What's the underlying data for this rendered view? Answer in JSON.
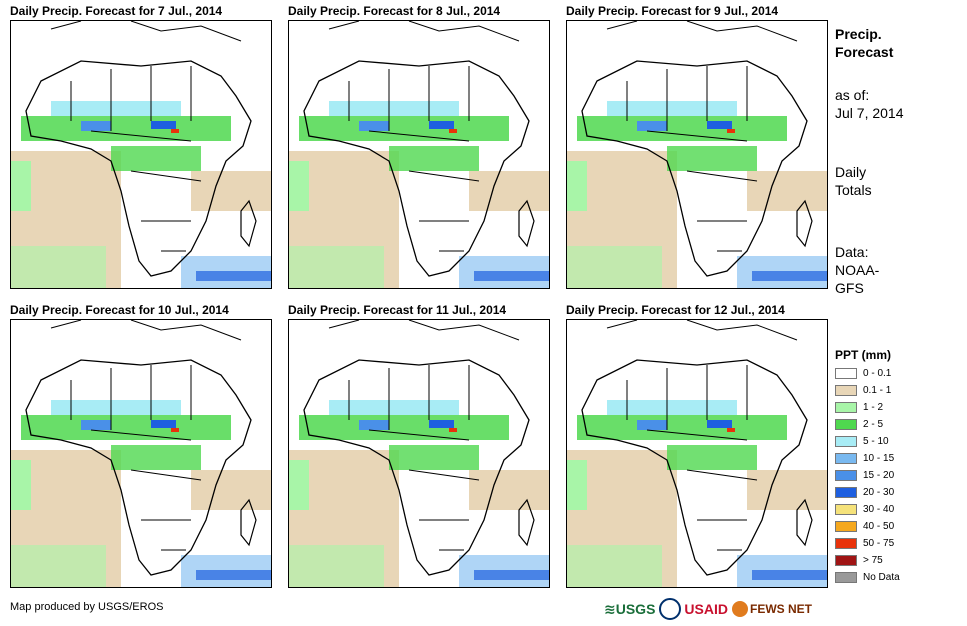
{
  "panels": [
    {
      "title": "Daily Precip. Forecast for 7 Jul., 2014"
    },
    {
      "title": "Daily Precip. Forecast for 8 Jul., 2014"
    },
    {
      "title": "Daily Precip. Forecast for 9 Jul., 2014"
    },
    {
      "title": "Daily Precip. Forecast for 10 Jul., 2014"
    },
    {
      "title": "Daily Precip. Forecast for 11 Jul., 2014"
    },
    {
      "title": "Daily Precip. Forecast for 12 Jul., 2014"
    }
  ],
  "side": {
    "title_line1": "Precip.",
    "title_line2": "Forecast",
    "asof_line1": "as of:",
    "asof_line2": "Jul 7, 2014",
    "daily_line1": "Daily",
    "daily_line2": "Totals",
    "data_line1": "Data:",
    "data_line2": "NOAA-",
    "data_line3": "GFS"
  },
  "legend": {
    "title": "PPT (mm)",
    "items": [
      {
        "label": "0 - 0.1",
        "color": "#ffffff"
      },
      {
        "label": "0.1 - 1",
        "color": "#e8d6b7"
      },
      {
        "label": "1 - 2",
        "color": "#a8f5a8"
      },
      {
        "label": "2 - 5",
        "color": "#4fd84f"
      },
      {
        "label": "5 - 10",
        "color": "#a8ecf5"
      },
      {
        "label": "10 - 15",
        "color": "#79b9f0"
      },
      {
        "label": "15 - 20",
        "color": "#4a90e8"
      },
      {
        "label": "20 - 30",
        "color": "#1e5fe0"
      },
      {
        "label": "30 - 40",
        "color": "#f5e27a"
      },
      {
        "label": "40 - 50",
        "color": "#f5a81e"
      },
      {
        "label": "50 - 75",
        "color": "#e8320a"
      },
      {
        "label": "> 75",
        "color": "#a01414"
      },
      {
        "label": "No Data",
        "color": "#999999"
      }
    ]
  },
  "footer": {
    "credit": "Map produced by USGS/EROS",
    "logos": [
      "USGS",
      "USAID",
      "FEWS NET"
    ]
  }
}
